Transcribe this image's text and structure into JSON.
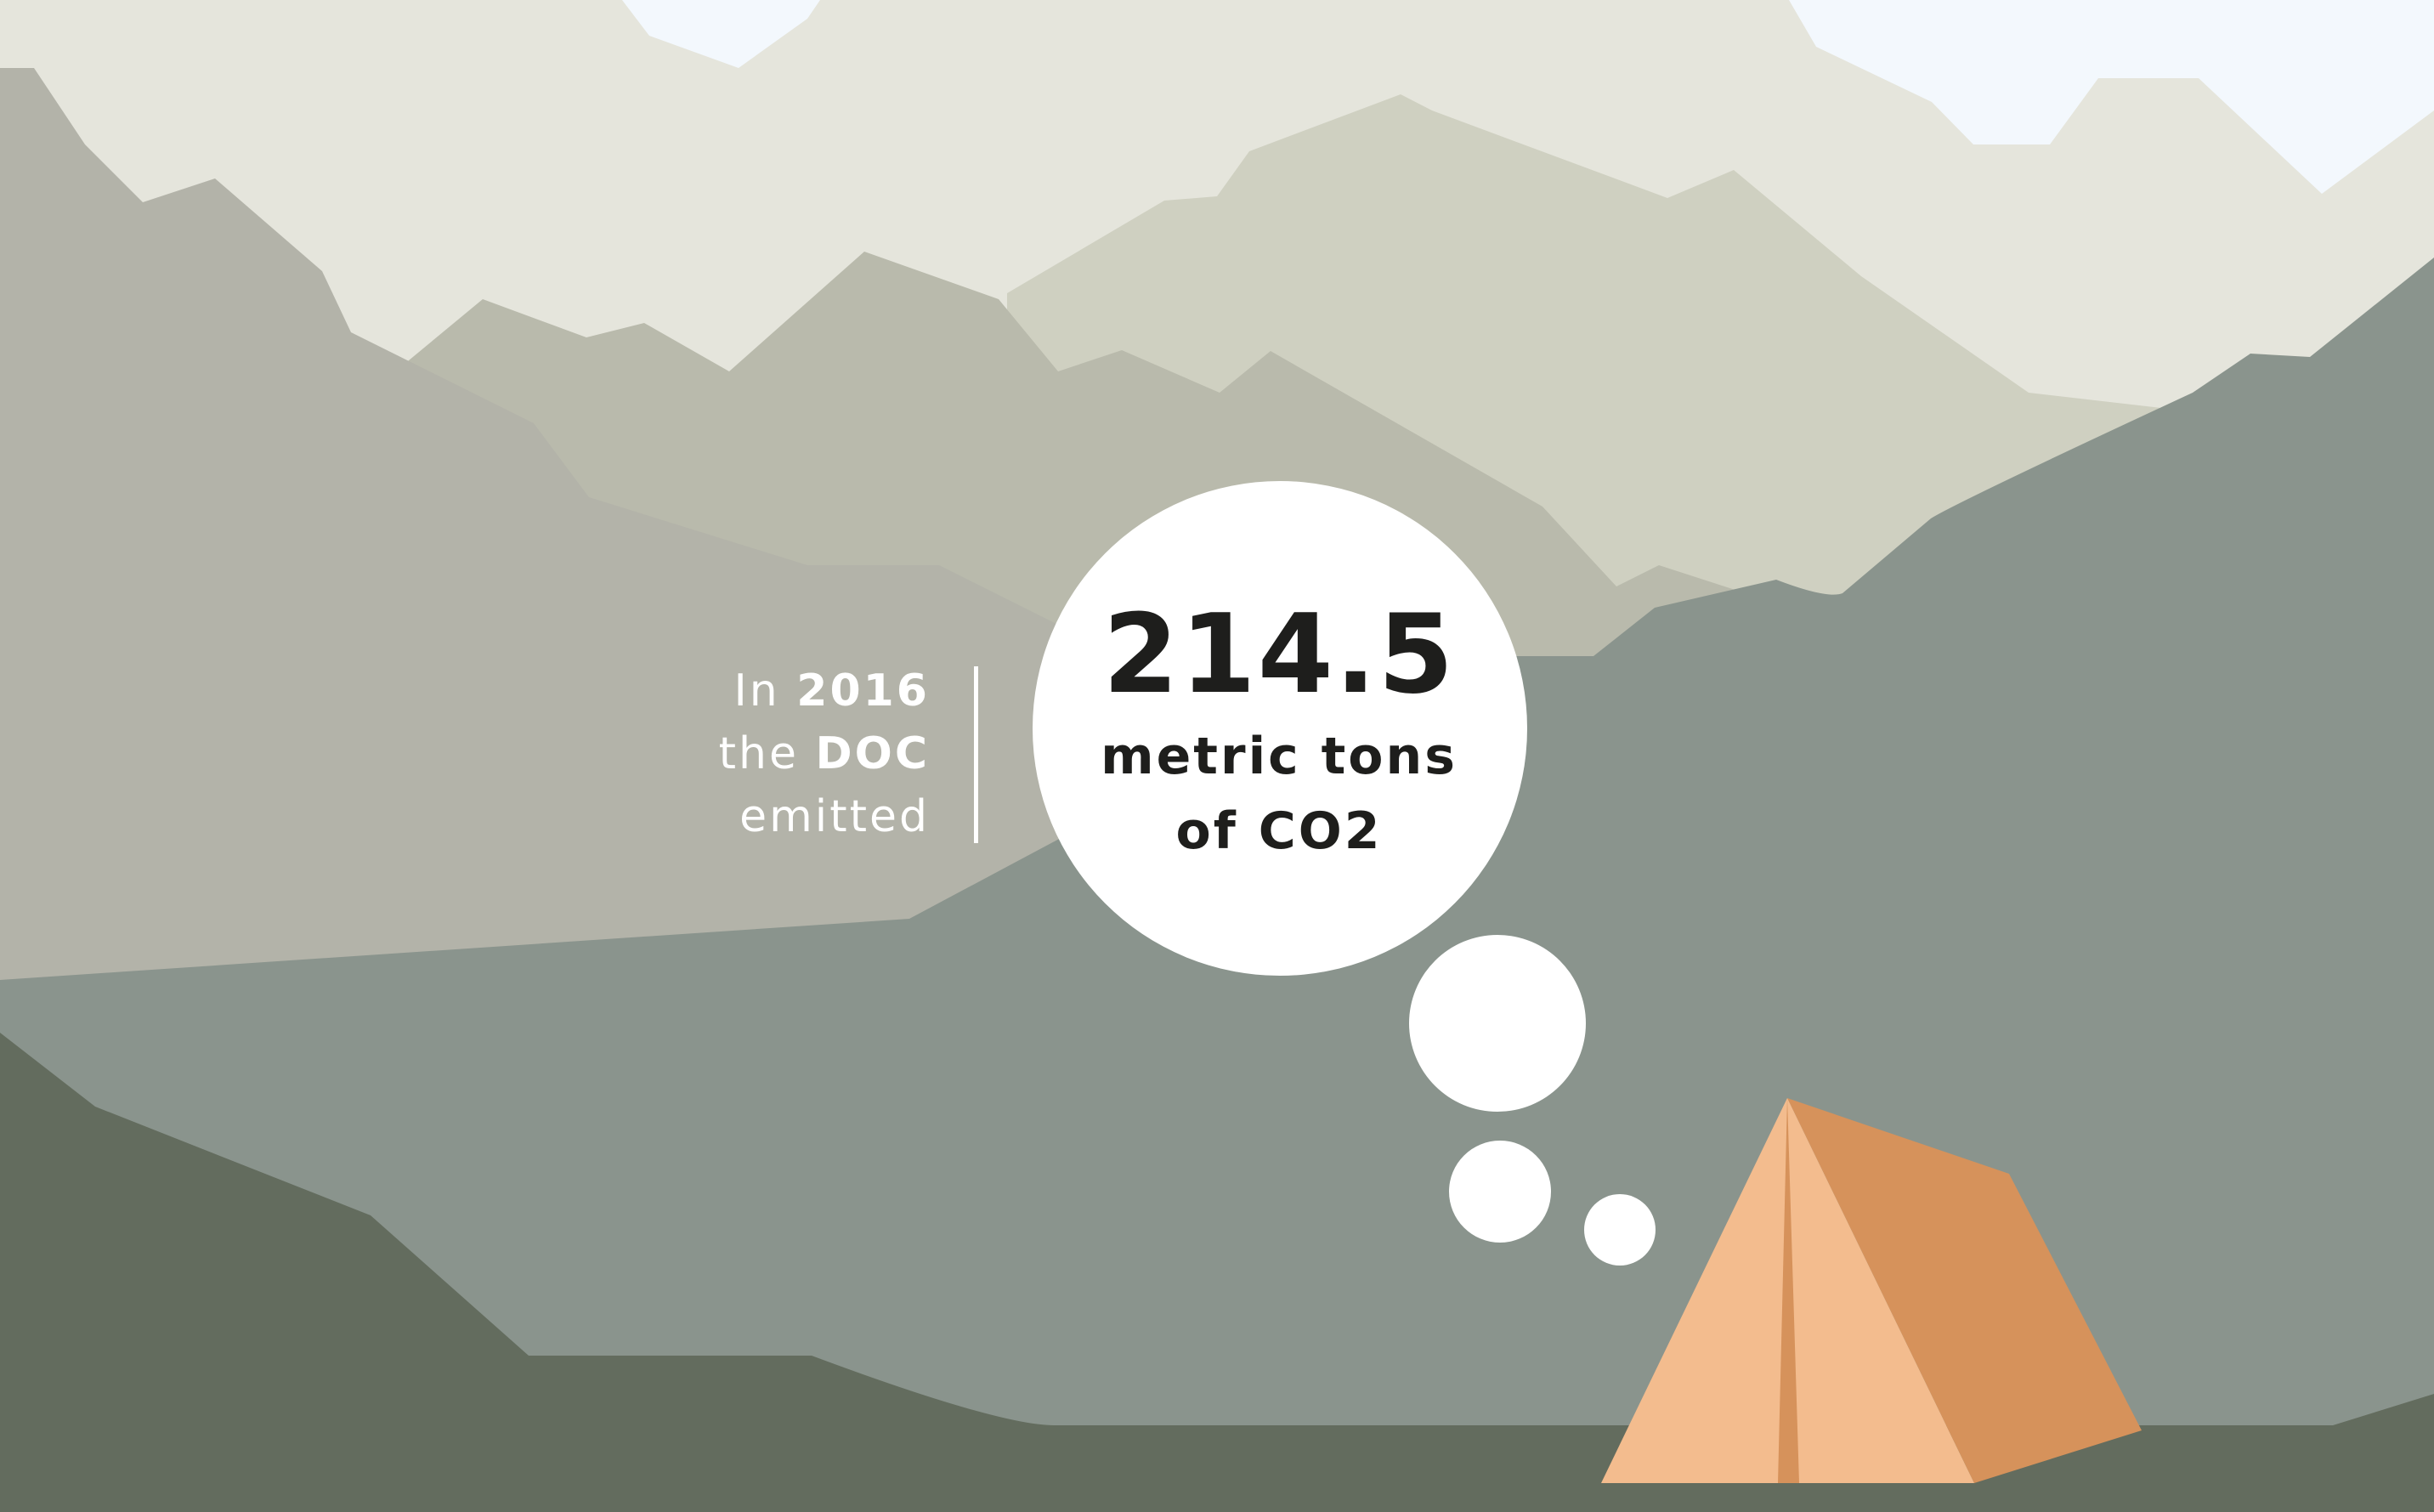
{
  "intro": {
    "line1_prefix": "In",
    "line1_year": "2016",
    "line2_prefix": "the",
    "line2_org": "DOC",
    "line3": "emitted"
  },
  "bubble": {
    "number": "214.5",
    "line1": "metric tons",
    "line2": "of CO2"
  },
  "colors": {
    "sky": "#f3f8fd",
    "far_mountain": "#e5e5dc",
    "mid_mountain": "#cfd0c1",
    "near_mountain": "#b9baac",
    "left_slope": "#b3b3a9",
    "valley": "#8a948d",
    "ground": "#636c5e",
    "bubble": "#ffffff",
    "tent_light": "#f3bc8e",
    "tent_dark": "#d6925b",
    "text_dark": "#1e1e1c"
  }
}
